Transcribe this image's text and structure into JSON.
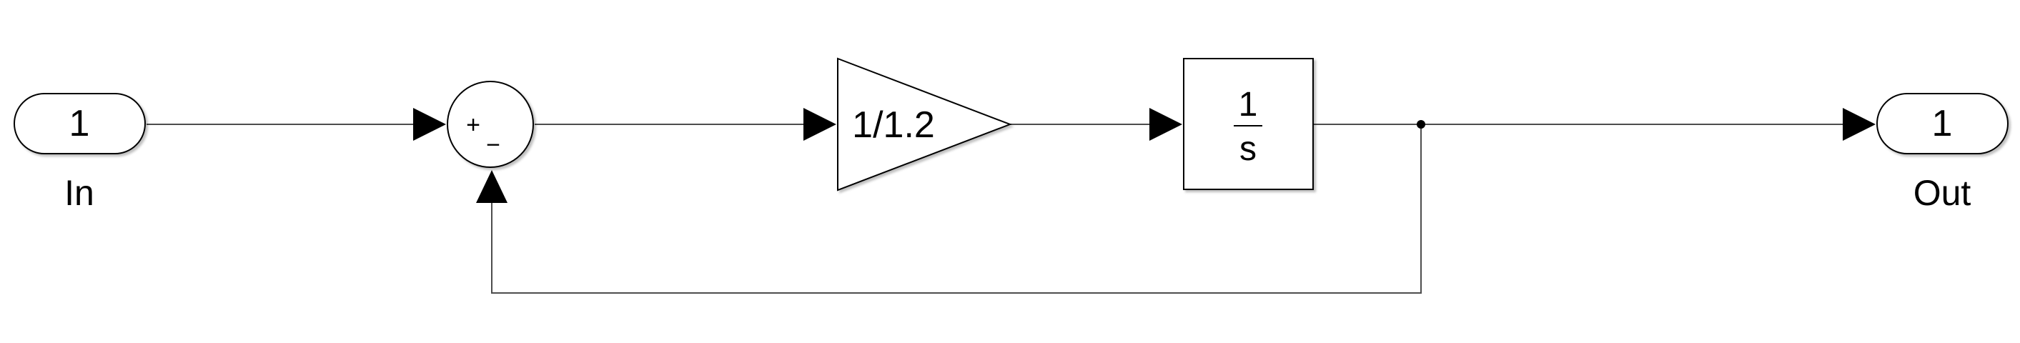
{
  "diagram": {
    "type": "simulink-block-diagram",
    "inport": {
      "number": "1",
      "label": "In"
    },
    "sum": {
      "plus_sign": "+",
      "minus_sign": "−"
    },
    "gain": {
      "label": "1/1.2"
    },
    "integrator": {
      "numerator": "1",
      "denominator": "s"
    },
    "outport": {
      "number": "1",
      "label": "Out"
    }
  },
  "colors": {
    "background": "#ffffff",
    "stroke": "#000000",
    "block_fill": "#ffffff",
    "line": "#4d4d4d"
  }
}
